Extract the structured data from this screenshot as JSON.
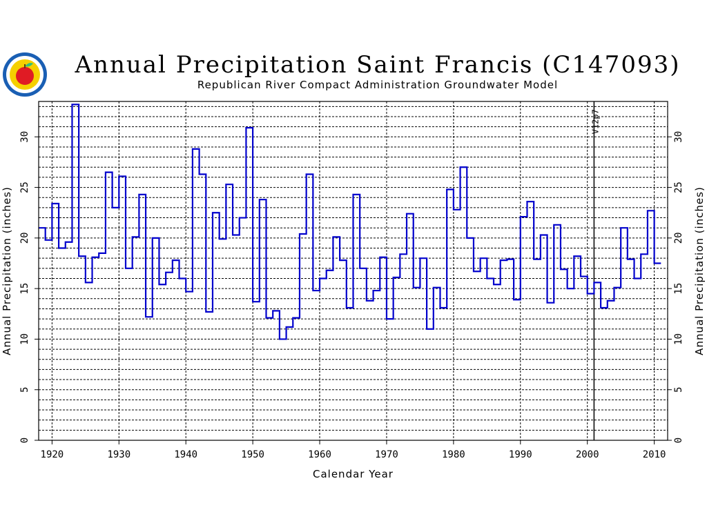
{
  "title": "Annual Precipitation Saint Francis (C147093)",
  "subtitle": "Republican River Compact Administration Groundwater Model",
  "colors": {
    "series": "#0000cc",
    "grid": "#000000",
    "logo_ring": "#1a5fb4",
    "logo_fill": "#f5d000",
    "apple": "#e01b24"
  },
  "chart_data": {
    "type": "line",
    "step": true,
    "title": "Annual Precipitation Saint Francis (C147093)",
    "subtitle": "Republican River Compact Administration Groundwater Model",
    "xlabel": "Calendar Year",
    "ylabel": "Annual Precipitation (inches)",
    "xlim": [
      1918,
      2012
    ],
    "ylim": [
      0,
      33.5
    ],
    "x_ticks": [
      1920,
      1930,
      1940,
      1950,
      1960,
      1970,
      1980,
      1990,
      2000,
      2010
    ],
    "y_ticks": [
      0,
      5,
      10,
      15,
      20,
      25,
      30
    ],
    "grid": true,
    "annotations": [
      {
        "x": 2001,
        "text": "V12p7"
      }
    ],
    "series": [
      {
        "name": "",
        "years": [
          1918,
          1919,
          1920,
          1921,
          1922,
          1923,
          1924,
          1925,
          1926,
          1927,
          1928,
          1929,
          1930,
          1931,
          1932,
          1933,
          1934,
          1935,
          1936,
          1937,
          1938,
          1939,
          1940,
          1941,
          1942,
          1943,
          1944,
          1945,
          1946,
          1947,
          1948,
          1949,
          1950,
          1951,
          1952,
          1953,
          1954,
          1955,
          1956,
          1957,
          1958,
          1959,
          1960,
          1961,
          1962,
          1963,
          1964,
          1965,
          1966,
          1967,
          1968,
          1969,
          1970,
          1971,
          1972,
          1973,
          1974,
          1975,
          1976,
          1977,
          1978,
          1979,
          1980,
          1981,
          1982,
          1983,
          1984,
          1985,
          1986,
          1987,
          1988,
          1989,
          1990,
          1991,
          1992,
          1993,
          1994,
          1995,
          1996,
          1997,
          1998,
          1999,
          2000,
          2001,
          2002,
          2003,
          2004,
          2005,
          2006,
          2007,
          2008,
          2009,
          2010
        ],
        "values": [
          21.0,
          19.8,
          23.4,
          19.0,
          19.6,
          33.2,
          18.2,
          15.6,
          18.1,
          18.5,
          26.5,
          23.0,
          26.1,
          17.0,
          20.1,
          24.3,
          12.2,
          20.0,
          15.4,
          16.6,
          17.8,
          16.0,
          14.7,
          28.8,
          26.3,
          12.7,
          22.5,
          19.9,
          25.3,
          20.3,
          22.0,
          30.9,
          13.7,
          23.8,
          12.1,
          12.8,
          10.0,
          11.2,
          12.1,
          20.4,
          26.3,
          14.8,
          16.0,
          16.8,
          20.1,
          17.8,
          13.1,
          24.3,
          17.0,
          13.8,
          14.8,
          18.1,
          12.0,
          16.1,
          18.4,
          22.4,
          15.1,
          18.0,
          11.0,
          15.1,
          13.1,
          24.8,
          22.8,
          27.0,
          20.0,
          16.7,
          18.0,
          16.0,
          15.4,
          17.8,
          17.9,
          13.9,
          22.1,
          23.6,
          17.9,
          20.3,
          13.6,
          21.3,
          16.9,
          15.0,
          18.2,
          16.2,
          14.5,
          15.6,
          13.1,
          13.8,
          15.1,
          21.0,
          17.9,
          16.0,
          18.4,
          22.7,
          17.5
        ]
      }
    ]
  }
}
